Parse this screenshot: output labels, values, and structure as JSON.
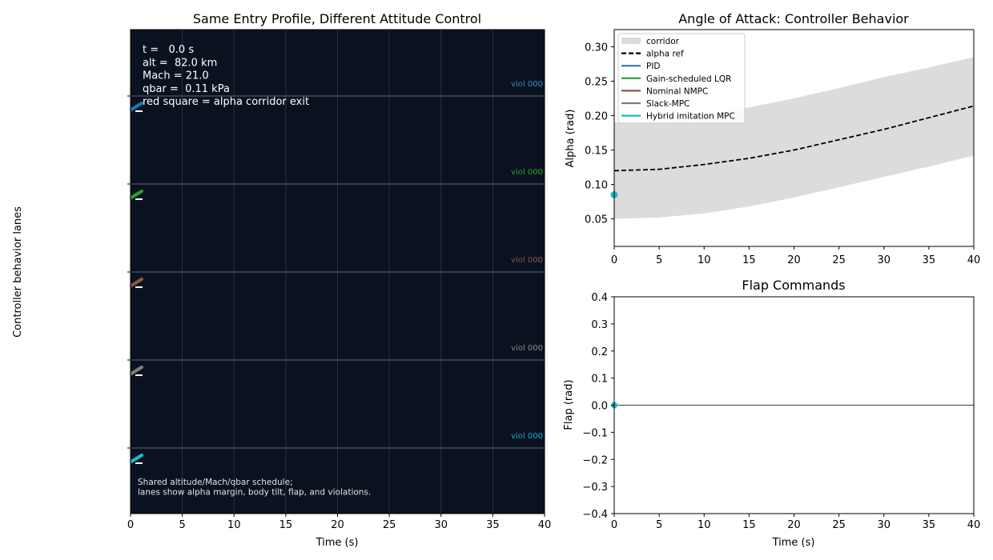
{
  "left_panel": {
    "title": "Same Entry Profile, Different Attitude Control",
    "xlabel": "Time (s)",
    "ylabel": "Controller behavior lanes",
    "x_ticks": [
      "0",
      "5",
      "10",
      "15",
      "20",
      "25",
      "30",
      "35",
      "40"
    ],
    "hud_lines": [
      "t =   0.0 s",
      "alt =  82.0 km",
      "Mach = 21.0",
      "qbar =  0.11 kPa",
      "red square = alpha corridor exit"
    ],
    "footnote_lines": [
      "Shared altitude/Mach/qbar schedule;",
      "lanes show alpha margin, body tilt, flap, and violations."
    ],
    "lanes": [
      {
        "label": "viol 000",
        "color": "#1f77b4",
        "label_color": "#2f8fc6"
      },
      {
        "label": "viol 000",
        "color": "#2ca02c",
        "label_color": "#2ca02c"
      },
      {
        "label": "viol 000",
        "color": "#8c564b",
        "label_color": "#8c564b"
      },
      {
        "label": "viol 000",
        "color": "#7f7f7f",
        "label_color": "#8a8a8a"
      },
      {
        "label": "viol 000",
        "color": "#17becf",
        "label_color": "#17a9d4"
      }
    ],
    "colors": {
      "background": "#0a1220",
      "grid": "#2a3a4c",
      "lane_line": "#5a6878",
      "text": "#ffffff"
    }
  },
  "chart_data": [
    {
      "type": "line",
      "title": "Angle of Attack: Controller Behavior",
      "xlabel": "",
      "ylabel": "Alpha (rad)",
      "xlim": [
        0,
        40
      ],
      "ylim": [
        0.01,
        0.325
      ],
      "x_ticks": [
        0,
        5,
        10,
        15,
        20,
        25,
        30,
        35,
        40
      ],
      "y_ticks": [
        "0.05",
        "0.10",
        "0.15",
        "0.20",
        "0.25",
        "0.30"
      ],
      "corridor": {
        "name": "corridor",
        "x": [
          0,
          5,
          10,
          15,
          20,
          25,
          30,
          35,
          40
        ],
        "lower": [
          0.05,
          0.052,
          0.058,
          0.068,
          0.081,
          0.096,
          0.111,
          0.126,
          0.142
        ],
        "upper": [
          0.19,
          0.192,
          0.2,
          0.212,
          0.225,
          0.24,
          0.256,
          0.27,
          0.285
        ]
      },
      "series": [
        {
          "name": "alpha ref",
          "x": [
            0,
            5,
            10,
            15,
            20,
            25,
            30,
            35,
            40
          ],
          "values": [
            0.12,
            0.122,
            0.129,
            0.138,
            0.15,
            0.165,
            0.18,
            0.197,
            0.214
          ],
          "color": "#000000",
          "style": "dashed"
        },
        {
          "name": "PID",
          "x": [
            0
          ],
          "values": [
            0.085
          ],
          "color": "#3a75a8"
        },
        {
          "name": "Gain-scheduled LQR",
          "x": [
            0
          ],
          "values": [
            0.085
          ],
          "color": "#2ca02c"
        },
        {
          "name": "Nominal NMPC",
          "x": [
            0
          ],
          "values": [
            0.085
          ],
          "color": "#8c564b"
        },
        {
          "name": "Slack-MPC",
          "x": [
            0
          ],
          "values": [
            0.085
          ],
          "color": "#7f7f7f"
        },
        {
          "name": "Hybrid imitation MPC",
          "x": [
            0
          ],
          "values": [
            0.085
          ],
          "color": "#17becf"
        }
      ],
      "legend": "top-left",
      "grid": false
    },
    {
      "type": "line",
      "title": "Flap Commands",
      "xlabel": "Time (s)",
      "ylabel": "Flap (rad)",
      "xlim": [
        0,
        40
      ],
      "ylim": [
        -0.4,
        0.4
      ],
      "x_ticks": [
        0,
        5,
        10,
        15,
        20,
        25,
        30,
        35,
        40
      ],
      "y_ticks": [
        "−0.4",
        "−0.3",
        "−0.2",
        "−0.1",
        "0.0",
        "0.1",
        "0.2",
        "0.3",
        "0.4"
      ],
      "zero_line": true,
      "series": [
        {
          "x": [
            0
          ],
          "values": [
            0.0
          ],
          "color": "#17becf"
        }
      ],
      "grid": false
    }
  ]
}
